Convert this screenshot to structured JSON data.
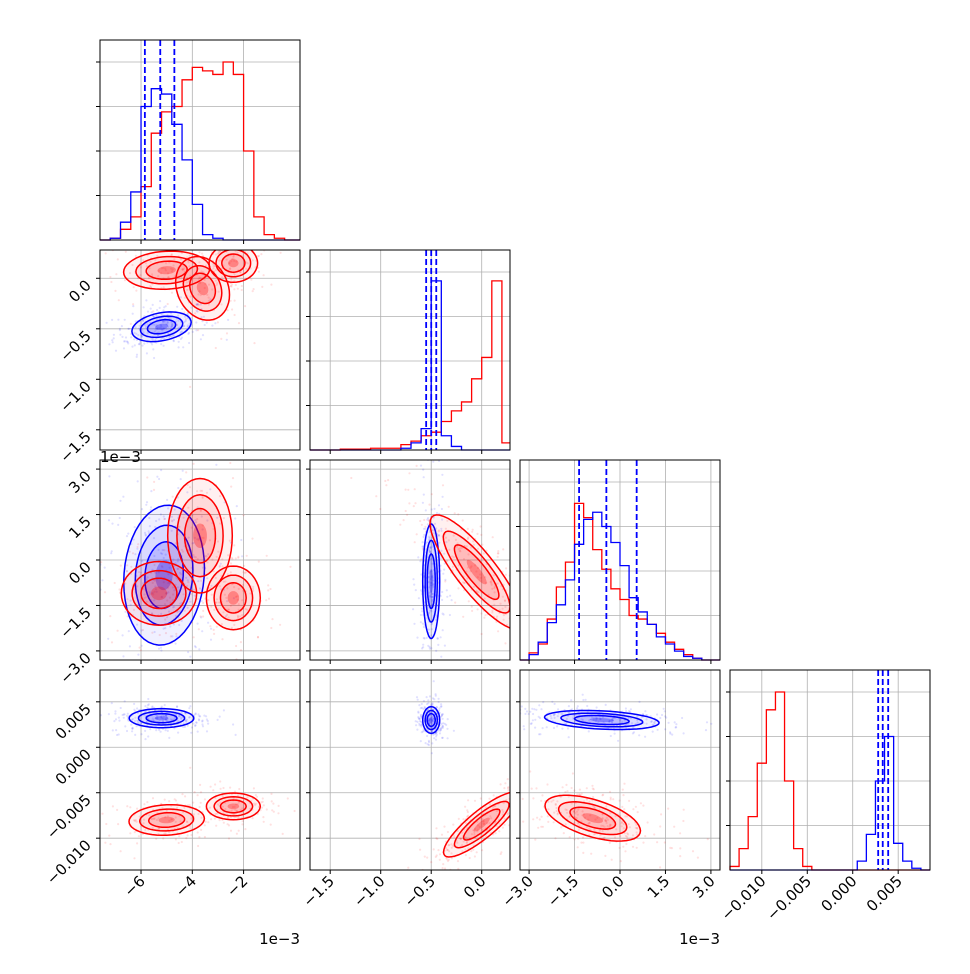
{
  "chart_data": {
    "type": "scatter",
    "title": "",
    "layout": "corner-plot 4x4 lower triangle",
    "series": [
      {
        "name": "",
        "color": "#0000ff"
      },
      {
        "name": "",
        "color": "#ff0000"
      }
    ],
    "colors": {
      "series_a": "#0000ff",
      "series_b": "#ff0000",
      "grid": "#b0b0b0"
    },
    "grid": true,
    "parameters": [
      {
        "index": 0,
        "range": [
          -7.6,
          0.2
        ],
        "ticks": [
          -6,
          -4,
          -2
        ],
        "tick_labels": [
          "−6",
          "−4",
          "−2"
        ],
        "offset_label": "1e−3"
      },
      {
        "index": 1,
        "range": [
          -1.7,
          0.28
        ],
        "ticks": [
          -1.5,
          -1.0,
          -0.5,
          0.0
        ],
        "tick_labels": [
          "−1.5",
          "−1.0",
          "−0.5",
          "0.0"
        ],
        "offset_label": "1e−3"
      },
      {
        "index": 2,
        "range": [
          -3.3,
          3.3
        ],
        "ticks": [
          -3.0,
          -1.5,
          0.0,
          1.5,
          3.0
        ],
        "tick_labels": [
          "−3.0",
          "−1.5",
          "0.0",
          "1.5",
          "3.0"
        ],
        "offset_label": "1e−3"
      },
      {
        "index": 3,
        "range": [
          -0.0135,
          0.0085
        ],
        "ticks": [
          -0.01,
          -0.005,
          0.0,
          0.005
        ],
        "tick_labels": [
          "−0.010",
          "−0.005",
          "0.000",
          "0.005"
        ],
        "offset_label": ""
      }
    ],
    "quantile_lines": {
      "color": "#0000ff",
      "p0": [
        -5.85,
        -5.25,
        -4.7
      ],
      "p1": [
        -0.55,
        -0.5,
        -0.45
      ],
      "p2": [
        -1.35,
        -0.45,
        0.55
      ],
      "p3": [
        0.0028,
        0.0033,
        0.0039
      ]
    },
    "histograms": {
      "p0": {
        "edges": [
          -7.6,
          -7.2,
          -6.8,
          -6.4,
          -6.0,
          -5.6,
          -5.2,
          -4.8,
          -4.4,
          -4.0,
          -3.6,
          -3.2,
          -2.8,
          -2.4,
          -2.0,
          -1.6,
          -1.2,
          -0.8,
          -0.4,
          0.0,
          0.2
        ],
        "blue": [
          0,
          0.01,
          0.1,
          0.27,
          0.75,
          0.85,
          0.82,
          0.65,
          0.45,
          0.2,
          0.03,
          0.01,
          0,
          0,
          0,
          0,
          0,
          0,
          0,
          0
        ],
        "red": [
          0,
          0.01,
          0.06,
          0.13,
          0.3,
          0.6,
          0.72,
          0.75,
          0.9,
          0.97,
          0.95,
          0.93,
          1.0,
          0.93,
          0.5,
          0.13,
          0.03,
          0.01,
          0,
          0
        ]
      },
      "p1": {
        "edges": [
          -1.7,
          -1.4,
          -1.1,
          -0.8,
          -0.7,
          -0.6,
          -0.5,
          -0.4,
          -0.3,
          -0.2,
          -0.1,
          0.0,
          0.1,
          0.2,
          0.28
        ],
        "blue": [
          0,
          0,
          0,
          0.01,
          0.04,
          0.12,
          0.95,
          0.08,
          0.02,
          0,
          0,
          0,
          0,
          0
        ],
        "red": [
          0,
          0.005,
          0.01,
          0.03,
          0.05,
          0.08,
          0.1,
          0.16,
          0.22,
          0.27,
          0.4,
          0.52,
          0.95,
          0.04
        ]
      },
      "p2": {
        "edges": [
          -3.3,
          -3.0,
          -2.7,
          -2.4,
          -2.1,
          -1.8,
          -1.5,
          -1.2,
          -0.9,
          -0.6,
          -0.3,
          0.0,
          0.3,
          0.6,
          0.9,
          1.2,
          1.5,
          1.8,
          2.1,
          2.4,
          2.7,
          3.0,
          3.3
        ],
        "blue": [
          0,
          0.03,
          0.1,
          0.21,
          0.31,
          0.45,
          0.65,
          0.79,
          0.83,
          0.75,
          0.66,
          0.53,
          0.35,
          0.27,
          0.2,
          0.13,
          0.09,
          0.05,
          0.02,
          0.01,
          0,
          0
        ],
        "red": [
          0,
          0.04,
          0.09,
          0.23,
          0.41,
          0.55,
          0.88,
          0.8,
          0.62,
          0.51,
          0.4,
          0.34,
          0.25,
          0.23,
          0.2,
          0.15,
          0.1,
          0.06,
          0.03,
          0.01,
          0,
          0
        ]
      },
      "p3": {
        "edges": [
          -0.0135,
          -0.0125,
          -0.0115,
          -0.0105,
          -0.0095,
          -0.0085,
          -0.0075,
          -0.0065,
          -0.0055,
          -0.0045,
          -0.0035,
          -0.0025,
          -0.0015,
          -0.0005,
          0.0005,
          0.0015,
          0.0025,
          0.0035,
          0.0045,
          0.0055,
          0.0065,
          0.0075,
          0.0085
        ],
        "blue": [
          0,
          0,
          0,
          0,
          0,
          0,
          0,
          0,
          0,
          0,
          0,
          0,
          0,
          0,
          0.05,
          0.2,
          0.5,
          0.75,
          0.15,
          0.05,
          0.01,
          0
        ],
        "red": [
          0.02,
          0.12,
          0.3,
          0.6,
          0.9,
          1.0,
          0.5,
          0.12,
          0.02,
          0,
          0,
          0,
          0,
          0,
          0,
          0,
          0,
          0,
          0,
          0,
          0,
          0
        ]
      }
    },
    "clusters": {
      "1_0": {
        "blue": [
          {
            "cx": -5.2,
            "cy": -0.48,
            "sx": 0.55,
            "sy": 0.07,
            "rho": 0.3,
            "weight": 1
          }
        ],
        "red": [
          {
            "cx": -5.0,
            "cy": 0.08,
            "sx": 0.8,
            "sy": 0.09,
            "rho": 0.1,
            "weight": 0.5
          },
          {
            "cx": -2.4,
            "cy": 0.15,
            "sx": 0.45,
            "sy": 0.09,
            "rho": 0,
            "weight": 0.5
          },
          {
            "cx": -3.6,
            "cy": -0.1,
            "sx": 0.5,
            "sy": 0.15,
            "rho": -0.2,
            "weight": 0.25
          }
        ]
      },
      "2_0": {
        "blue": [
          {
            "cx": -5.1,
            "cy": -0.5,
            "sx": 0.75,
            "sy": 1.1,
            "rho": 0.1,
            "weight": 1
          }
        ],
        "red": [
          {
            "cx": -5.3,
            "cy": -1.1,
            "sx": 0.7,
            "sy": 0.5,
            "rho": 0,
            "weight": 0.45
          },
          {
            "cx": -2.4,
            "cy": -1.25,
            "sx": 0.5,
            "sy": 0.5,
            "rho": 0,
            "weight": 0.45
          },
          {
            "cx": -3.7,
            "cy": 0.8,
            "sx": 0.6,
            "sy": 0.9,
            "rho": 0,
            "weight": 0.3
          }
        ]
      },
      "2_1": {
        "blue": [
          {
            "cx": -0.5,
            "cy": -0.7,
            "sx": 0.04,
            "sy": 0.9,
            "rho": 0,
            "weight": 1
          }
        ],
        "red": [
          {
            "cx": -0.05,
            "cy": -0.4,
            "sx": 0.22,
            "sy": 0.9,
            "rho": -0.85,
            "weight": 1
          }
        ]
      },
      "3_0": {
        "blue": [
          {
            "cx": -5.2,
            "cy": 0.0032,
            "sx": 0.6,
            "sy": 0.0005,
            "rho": 0,
            "weight": 1
          }
        ],
        "red": [
          {
            "cx": -5.0,
            "cy": -0.008,
            "sx": 0.7,
            "sy": 0.0008,
            "rho": 0.1,
            "weight": 0.55
          },
          {
            "cx": -2.4,
            "cy": -0.0065,
            "sx": 0.5,
            "sy": 0.0007,
            "rho": 0,
            "weight": 0.45
          }
        ]
      },
      "3_1": {
        "blue": [
          {
            "cx": -0.5,
            "cy": 0.003,
            "sx": 0.04,
            "sy": 0.0007,
            "rho": 0,
            "weight": 1
          }
        ],
        "red": [
          {
            "cx": 0.0,
            "cy": -0.0085,
            "sx": 0.18,
            "sy": 0.0017,
            "rho": 0.85,
            "weight": 1
          }
        ]
      },
      "3_2": {
        "blue": [
          {
            "cx": -0.6,
            "cy": 0.003,
            "sx": 0.9,
            "sy": 0.0005,
            "rho": -0.3,
            "weight": 1
          }
        ],
        "red": [
          {
            "cx": -0.9,
            "cy": -0.0078,
            "sx": 0.75,
            "sy": 0.0012,
            "rho": -0.55,
            "weight": 1
          }
        ]
      }
    }
  }
}
